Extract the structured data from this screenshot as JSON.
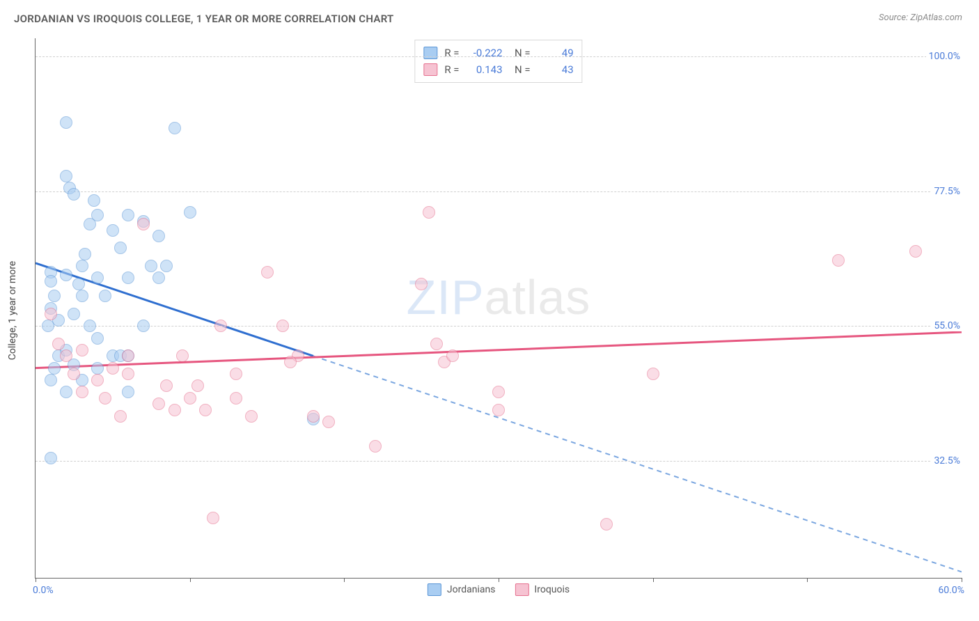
{
  "title": "JORDANIAN VS IROQUOIS COLLEGE, 1 YEAR OR MORE CORRELATION CHART",
  "source": "Source: ZipAtlas.com",
  "watermark_a": "ZIP",
  "watermark_b": "atlas",
  "chart": {
    "type": "scatter",
    "ylabel": "College, 1 year or more",
    "xlim": [
      0.0,
      60.0
    ],
    "ylim": [
      13.0,
      103.0
    ],
    "xticks": [
      0.0,
      10.0,
      20.0,
      30.0,
      40.0,
      50.0,
      60.0
    ],
    "xlabels": {
      "min": "0.0%",
      "max": "60.0%"
    },
    "yticks": [
      32.5,
      55.0,
      77.5,
      100.0
    ],
    "ylabels": [
      "32.5%",
      "55.0%",
      "77.5%",
      "100.0%"
    ],
    "grid_color": "#d0d0d0",
    "background_color": "#ffffff",
    "marker_radius": 8,
    "marker_opacity": 0.55,
    "series": [
      {
        "name": "Jordanians",
        "fill": "#a9cdf2",
        "stroke": "#5b96d6",
        "line_color": "#2f6fd0",
        "line_dash_color": "#7aa6e0",
        "R": "-0.222",
        "N": "49",
        "trend": {
          "x1": 0.0,
          "y1": 65.5,
          "x2": 18.0,
          "y2": 50.0,
          "x2_ext": 60.0,
          "y2_ext": 14.0
        },
        "points": [
          [
            1.0,
            64.0
          ],
          [
            1.0,
            62.5
          ],
          [
            1.2,
            60.0
          ],
          [
            1.0,
            58.0
          ],
          [
            1.5,
            56.0
          ],
          [
            0.8,
            55.0
          ],
          [
            2.0,
            80.0
          ],
          [
            2.2,
            78.0
          ],
          [
            2.5,
            77.0
          ],
          [
            2.0,
            89.0
          ],
          [
            3.5,
            72.0
          ],
          [
            4.0,
            73.5
          ],
          [
            3.0,
            65.0
          ],
          [
            4.0,
            63.0
          ],
          [
            5.0,
            71.0
          ],
          [
            5.5,
            68.0
          ],
          [
            6.0,
            73.5
          ],
          [
            6.0,
            63.0
          ],
          [
            7.0,
            72.5
          ],
          [
            7.5,
            65.0
          ],
          [
            8.0,
            70.0
          ],
          [
            8.0,
            63.0
          ],
          [
            9.0,
            88.0
          ],
          [
            10.0,
            74.0
          ],
          [
            3.0,
            60.0
          ],
          [
            2.5,
            57.0
          ],
          [
            3.5,
            55.0
          ],
          [
            4.0,
            53.0
          ],
          [
            4.5,
            60.0
          ],
          [
            5.0,
            50.0
          ],
          [
            5.5,
            50.0
          ],
          [
            6.0,
            44.0
          ],
          [
            6.0,
            50.0
          ],
          [
            7.0,
            55.0
          ],
          [
            1.0,
            46.0
          ],
          [
            1.2,
            48.0
          ],
          [
            1.5,
            50.0
          ],
          [
            2.0,
            44.0
          ],
          [
            2.5,
            48.5
          ],
          [
            3.0,
            46.0
          ],
          [
            1.0,
            33.0
          ],
          [
            2.0,
            63.5
          ],
          [
            2.8,
            62.0
          ],
          [
            3.2,
            67.0
          ],
          [
            3.8,
            76.0
          ],
          [
            2.0,
            51.0
          ],
          [
            8.5,
            65.0
          ],
          [
            4.0,
            48.0
          ],
          [
            18.0,
            39.5
          ]
        ]
      },
      {
        "name": "Iroquois",
        "fill": "#f6c3d2",
        "stroke": "#e6718f",
        "line_color": "#e6567f",
        "R": "0.143",
        "N": "43",
        "trend": {
          "x1": 0.0,
          "y1": 48.0,
          "x2": 60.0,
          "y2": 54.0
        },
        "points": [
          [
            1.0,
            57.0
          ],
          [
            1.5,
            52.0
          ],
          [
            2.0,
            50.0
          ],
          [
            2.5,
            47.0
          ],
          [
            3.0,
            51.0
          ],
          [
            3.0,
            44.0
          ],
          [
            4.0,
            46.0
          ],
          [
            4.5,
            43.0
          ],
          [
            5.0,
            48.0
          ],
          [
            5.5,
            40.0
          ],
          [
            6.0,
            47.0
          ],
          [
            6.0,
            50.0
          ],
          [
            7.0,
            72.0
          ],
          [
            8.0,
            42.0
          ],
          [
            8.5,
            45.0
          ],
          [
            9.0,
            41.0
          ],
          [
            9.5,
            50.0
          ],
          [
            10.0,
            43.0
          ],
          [
            10.5,
            45.0
          ],
          [
            11.0,
            41.0
          ],
          [
            12.0,
            55.0
          ],
          [
            13.0,
            47.0
          ],
          [
            13.0,
            43.0
          ],
          [
            14.0,
            40.0
          ],
          [
            15.0,
            64.0
          ],
          [
            16.0,
            55.0
          ],
          [
            17.0,
            50.0
          ],
          [
            18.0,
            40.0
          ],
          [
            22.0,
            35.0
          ],
          [
            11.5,
            23.0
          ],
          [
            25.0,
            62.0
          ],
          [
            25.5,
            74.0
          ],
          [
            26.0,
            52.0
          ],
          [
            26.5,
            49.0
          ],
          [
            27.0,
            50.0
          ],
          [
            30.0,
            44.0
          ],
          [
            30.0,
            41.0
          ],
          [
            37.0,
            22.0
          ],
          [
            40.0,
            47.0
          ],
          [
            52.0,
            66.0
          ],
          [
            57.0,
            67.5
          ],
          [
            16.5,
            49.0
          ],
          [
            19.0,
            39.0
          ]
        ]
      }
    ],
    "legend_bottom": [
      "Jordanians",
      "Iroquois"
    ]
  }
}
